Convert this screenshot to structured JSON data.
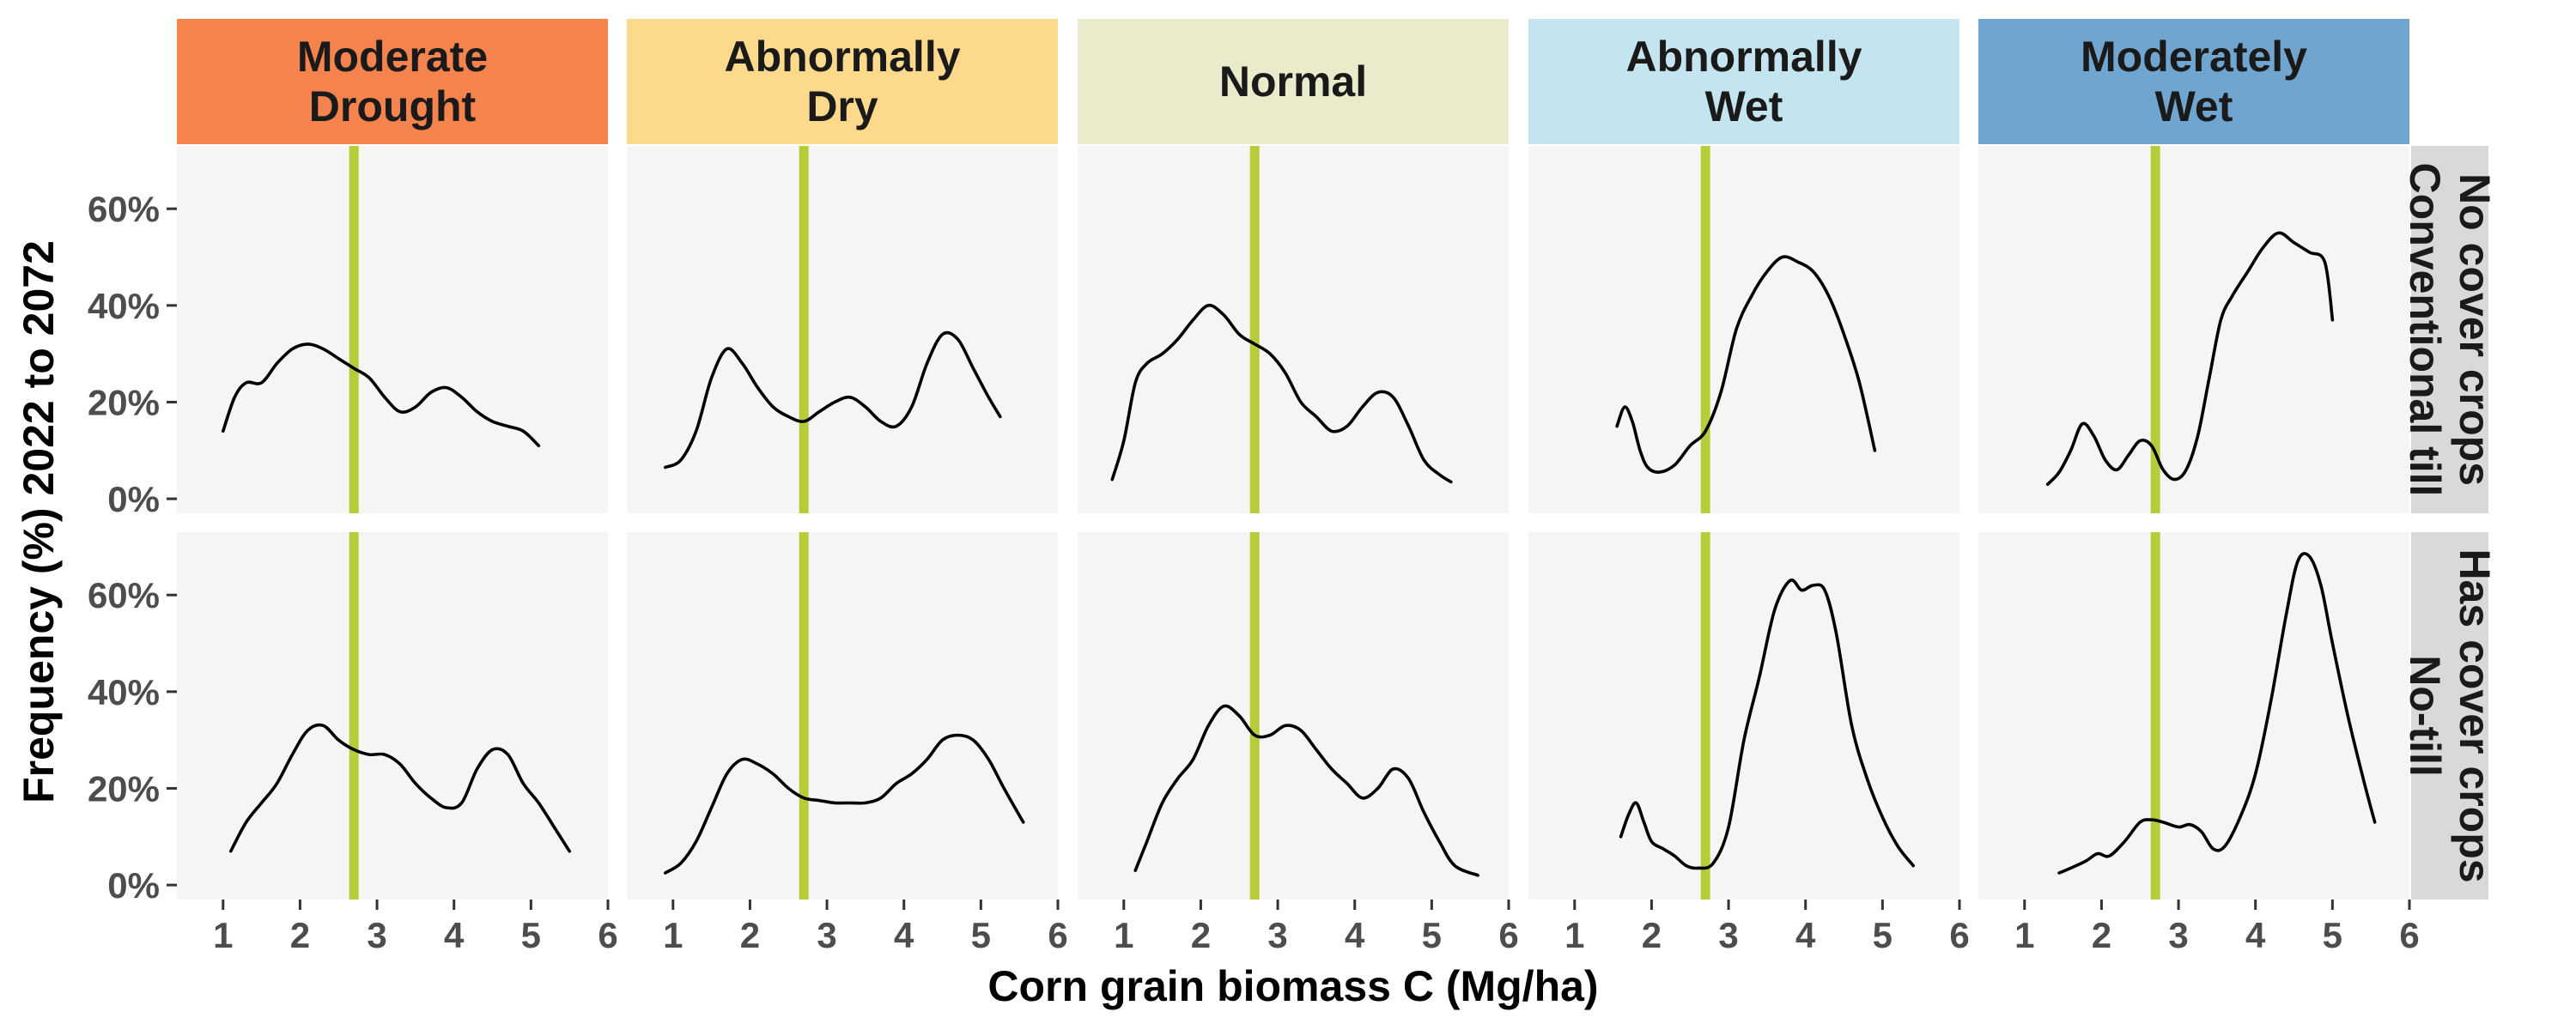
{
  "chart_data": {
    "type": "line",
    "facet_columns": [
      "Moderate\nDrought",
      "Abnormally\nDry",
      "Normal",
      "Abnormally\nWet",
      "Moderately\nWet"
    ],
    "facet_column_colors": [
      "#F4834E",
      "#FDD98B",
      "#EAEBCB",
      "#C4E4EF",
      "#6FA5CE"
    ],
    "facet_rows": [
      "No cover crops\nConventional till",
      "Has cover crops\nNo-till"
    ],
    "xlabel": "Corn grain biomass C (Mg/ha)",
    "ylabel": "Frequency (%) 2022 to 2072",
    "xlim": [
      0.4,
      6.0
    ],
    "ylim": [
      -3,
      73
    ],
    "x_ticks": [
      1,
      2,
      3,
      4,
      5,
      6
    ],
    "y_ticks": [
      0,
      20,
      40,
      60
    ],
    "y_tick_labels": [
      "0%",
      "20%",
      "40%",
      "60%"
    ],
    "reference_line": {
      "x": 2.7,
      "color": "#B8CC3A"
    },
    "line_color": "#000000",
    "panel_background": "#F5F5F5",
    "strip_row_color": "#D9D9D9",
    "grid": false,
    "curves": [
      [
        {
          "x": [
            1.0,
            1.15,
            1.3,
            1.5,
            1.7,
            1.9,
            2.1,
            2.3,
            2.5,
            2.7,
            2.9,
            3.1,
            3.3,
            3.5,
            3.7,
            3.9,
            4.1,
            4.3,
            4.5,
            4.7,
            4.9,
            5.1
          ],
          "y": [
            14,
            21,
            24,
            24,
            28,
            31,
            32,
            31,
            29,
            27,
            25,
            21,
            18,
            19,
            22,
            23,
            21,
            18,
            16,
            15,
            14,
            11
          ]
        },
        {
          "x": [
            0.9,
            1.1,
            1.3,
            1.5,
            1.7,
            1.9,
            2.1,
            2.3,
            2.5,
            2.7,
            2.9,
            3.1,
            3.3,
            3.5,
            3.7,
            3.9,
            4.1,
            4.3,
            4.5,
            4.7,
            4.9,
            5.1,
            5.25
          ],
          "y": [
            6.5,
            8,
            14,
            25,
            31,
            28,
            23,
            19,
            17,
            16,
            18,
            20,
            21,
            19,
            16,
            15,
            19,
            28,
            34,
            33,
            27,
            21,
            17
          ]
        },
        {
          "x": [
            0.85,
            1.0,
            1.15,
            1.3,
            1.5,
            1.7,
            1.9,
            2.1,
            2.3,
            2.5,
            2.7,
            2.9,
            3.1,
            3.3,
            3.5,
            3.7,
            3.9,
            4.1,
            4.3,
            4.5,
            4.7,
            4.9,
            5.1,
            5.25
          ],
          "y": [
            4,
            12,
            24,
            28,
            30,
            33,
            37,
            40,
            38,
            34,
            32,
            30,
            26,
            20,
            17,
            14,
            15,
            19,
            22,
            21,
            15,
            8,
            5,
            3.5
          ]
        },
        {
          "x": [
            1.55,
            1.65,
            1.75,
            1.85,
            1.95,
            2.1,
            2.3,
            2.5,
            2.7,
            2.9,
            3.1,
            3.3,
            3.5,
            3.7,
            3.9,
            4.1,
            4.3,
            4.5,
            4.7,
            4.9
          ],
          "y": [
            15,
            19,
            16,
            10,
            6.5,
            5.5,
            7,
            11,
            14,
            22,
            35,
            42,
            47,
            50,
            49,
            47,
            42,
            34,
            24,
            10
          ]
        },
        {
          "x": [
            1.3,
            1.45,
            1.6,
            1.75,
            1.9,
            2.05,
            2.2,
            2.35,
            2.5,
            2.65,
            2.8,
            2.95,
            3.1,
            3.25,
            3.4,
            3.55,
            3.7,
            3.9,
            4.1,
            4.3,
            4.5,
            4.7,
            4.9,
            5.0
          ],
          "y": [
            3,
            5.5,
            10,
            15.5,
            13,
            8,
            6,
            9,
            12,
            11,
            6,
            4,
            6,
            13,
            25,
            37,
            42,
            47,
            52,
            55,
            53,
            51,
            49,
            37
          ]
        }
      ],
      [
        {
          "x": [
            1.1,
            1.3,
            1.5,
            1.7,
            1.9,
            2.1,
            2.3,
            2.5,
            2.7,
            2.9,
            3.1,
            3.3,
            3.5,
            3.7,
            3.9,
            4.1,
            4.3,
            4.5,
            4.7,
            4.9,
            5.1,
            5.3,
            5.5
          ],
          "y": [
            7,
            13,
            17,
            21,
            27,
            32,
            33,
            30,
            28,
            27,
            27,
            25,
            21,
            18,
            16,
            17,
            24,
            28,
            27,
            21,
            17,
            12,
            7
          ]
        },
        {
          "x": [
            0.9,
            1.1,
            1.3,
            1.5,
            1.7,
            1.9,
            2.1,
            2.3,
            2.5,
            2.7,
            2.9,
            3.1,
            3.3,
            3.5,
            3.7,
            3.9,
            4.1,
            4.3,
            4.5,
            4.7,
            4.9,
            5.1,
            5.3,
            5.55
          ],
          "y": [
            2.5,
            4.5,
            9,
            16,
            23,
            26,
            25,
            23,
            20,
            18,
            17.5,
            17,
            17,
            17,
            18,
            21,
            23,
            26,
            30,
            31,
            30,
            26,
            20,
            13
          ]
        },
        {
          "x": [
            1.15,
            1.3,
            1.5,
            1.7,
            1.9,
            2.1,
            2.3,
            2.5,
            2.7,
            2.9,
            3.1,
            3.3,
            3.5,
            3.7,
            3.9,
            4.1,
            4.3,
            4.5,
            4.7,
            4.9,
            5.1,
            5.3,
            5.6
          ],
          "y": [
            3,
            9,
            17,
            22,
            26,
            33,
            37,
            35,
            31,
            31,
            33,
            32,
            28,
            24,
            21,
            18,
            20,
            24,
            22,
            15,
            9,
            4,
            2
          ]
        },
        {
          "x": [
            1.6,
            1.7,
            1.8,
            1.9,
            2.0,
            2.15,
            2.3,
            2.45,
            2.6,
            2.8,
            3.0,
            3.2,
            3.4,
            3.6,
            3.8,
            3.95,
            4.1,
            4.25,
            4.4,
            4.6,
            4.8,
            5.0,
            5.2,
            5.4
          ],
          "y": [
            10,
            14.5,
            17,
            13,
            9,
            7.5,
            6,
            4,
            3.5,
            4.5,
            12,
            30,
            43,
            57,
            63,
            61,
            62,
            61,
            52,
            33,
            22,
            14,
            8,
            4
          ]
        },
        {
          "x": [
            1.45,
            1.6,
            1.8,
            1.95,
            2.1,
            2.3,
            2.5,
            2.65,
            2.8,
            3.0,
            3.15,
            3.3,
            3.45,
            3.6,
            3.8,
            4.0,
            4.2,
            4.4,
            4.55,
            4.7,
            4.85,
            5.0,
            5.2,
            5.4,
            5.55
          ],
          "y": [
            2.5,
            3.5,
            5,
            6.5,
            6,
            9,
            13,
            13.5,
            13,
            12,
            12.5,
            11,
            7.5,
            8,
            14,
            23,
            38,
            56,
            67,
            68,
            62,
            50,
            35,
            22,
            13
          ]
        }
      ]
    ]
  }
}
